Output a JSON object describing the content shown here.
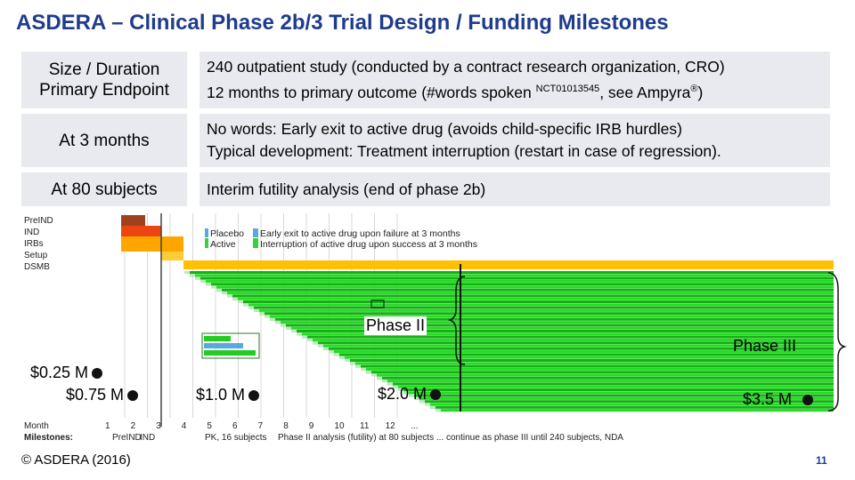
{
  "title": "ASDERA – Clinical Phase 2b/3 Trial Design / Funding Milestones",
  "rows": [
    {
      "label_lines": [
        "Size / Duration",
        "Primary Endpoint"
      ],
      "body_line1": "240 outpatient study (conducted by a contract research organization, CRO)",
      "body_line2_pre": "12 months to primary outcome (#words spoken ",
      "body_line2_sup": "NCT01013545",
      "body_line2_mid": ", see Ampyra",
      "body_line2_reg": "®",
      "body_line2_post": ")"
    },
    {
      "label": "At 3 months",
      "body_line1": "No words: Early exit to active drug (avoids child-specific IRB hurdles)",
      "body_line2": "Typical development: Treatment interruption (restart in case of regression)."
    },
    {
      "label": "At 80 subjects",
      "body_line1": "Interim futility analysis (end of phase 2b)"
    }
  ],
  "chart": {
    "phase_labels": [
      "PreIND",
      "IND",
      "IRBs",
      "Setup",
      "DSMB"
    ],
    "legend": [
      {
        "arm": "Placebo",
        "text": "Early exit to active drug upon failure at 3 months"
      },
      {
        "arm": "Active",
        "text": "Interruption of active drug upon success at 3 months"
      }
    ],
    "phase2_label": "Phase II",
    "phase3_label": "Phase III",
    "month_label": "Month",
    "months": [
      "1",
      "2",
      "3",
      "4",
      "5",
      "6",
      "7",
      "8",
      "9",
      "10",
      "11",
      "12",
      "..."
    ],
    "milestones_label": "Milestones:",
    "milestones": [
      "PreIND",
      "IND",
      "PK, 16 subjects",
      "Phase II analysis (futility) at 80 subjects ... continue as phase III until 240 subjects, NDA"
    ],
    "colors": {
      "green": "#22dd22",
      "green_dark": "#15b015",
      "placebo_blue": "#5aa8e0",
      "active_green": "#3ad03a",
      "preind": "#a0411e",
      "ind": "#ee4411",
      "irbs": "#ffa500",
      "setup": "#ffcc33",
      "dsmb_bar": "#ffc000",
      "title_blue": "#1f3c8c",
      "row_bg": "#e8eaf0"
    }
  },
  "funding": [
    "$0.25 M",
    "$0.75 M",
    "$1.0 M",
    "$2.0 M",
    "$3.5 M"
  ],
  "copyright": "© ASDERA (2016)",
  "page_number": "11"
}
